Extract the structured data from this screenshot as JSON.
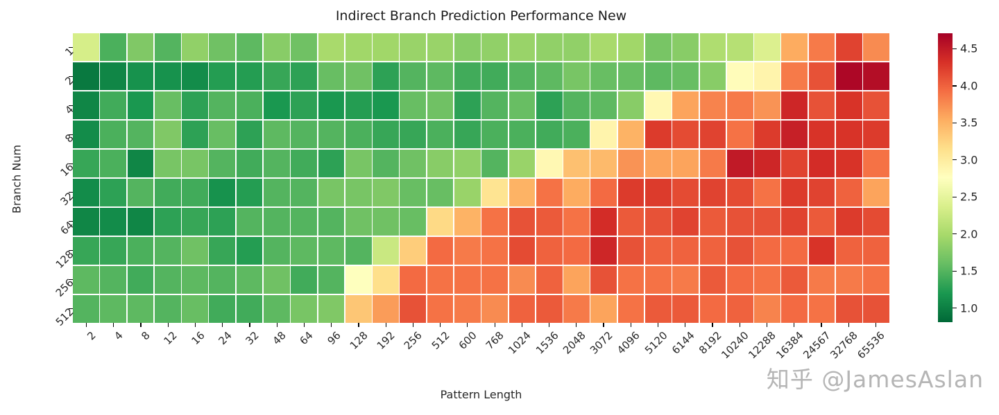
{
  "title": "Indirect Branch Prediction Performance New",
  "watermark": "知乎 @JamesAslan",
  "chart_data": {
    "type": "heatmap",
    "title": "Indirect Branch Prediction Performance New",
    "xlabel": "Pattern Length",
    "ylabel": "Branch Num",
    "x_categories": [
      "2",
      "4",
      "8",
      "12",
      "16",
      "24",
      "32",
      "48",
      "64",
      "96",
      "128",
      "192",
      "256",
      "512",
      "600",
      "768",
      "1024",
      "1536",
      "2048",
      "3072",
      "4096",
      "5120",
      "6144",
      "8192",
      "10240",
      "12288",
      "16384",
      "24567",
      "32768",
      "65536"
    ],
    "y_categories": [
      "1",
      "2",
      "4",
      "8",
      "16",
      "32",
      "64",
      "128",
      "256",
      "512"
    ],
    "colormap": "RdYlGn_r",
    "colormap_colors": [
      "#a50026",
      "#d73027",
      "#f46d43",
      "#fdae61",
      "#fee08b",
      "#ffffbf",
      "#d9ef8b",
      "#a6d96a",
      "#66bd63",
      "#1a9850",
      "#006837"
    ],
    "vmin": 0.81,
    "vmax": 4.71,
    "colorbar_ticks": [
      "1.0",
      "1.5",
      "2.0",
      "2.5",
      "3.0",
      "3.5",
      "4.0",
      "4.5"
    ],
    "grid_color": "#ffffff",
    "legend_position": "right",
    "values": [
      [
        2.35,
        1.45,
        1.75,
        1.5,
        1.85,
        1.65,
        1.55,
        1.8,
        1.65,
        2.0,
        1.95,
        1.95,
        1.9,
        1.9,
        1.8,
        1.85,
        1.9,
        1.85,
        1.85,
        2.0,
        1.95,
        1.7,
        1.8,
        2.05,
        2.1,
        2.4,
        3.55,
        3.85,
        4.2,
        3.75
      ],
      [
        0.95,
        1.05,
        1.15,
        1.15,
        1.1,
        1.25,
        1.25,
        1.35,
        1.3,
        1.6,
        1.65,
        1.3,
        1.5,
        1.55,
        1.4,
        1.4,
        1.5,
        1.55,
        1.7,
        1.6,
        1.6,
        1.55,
        1.6,
        1.8,
        2.8,
        2.9,
        3.85,
        4.1,
        4.65,
        4.6
      ],
      [
        1.05,
        1.4,
        1.2,
        1.6,
        1.3,
        1.5,
        1.45,
        1.2,
        1.3,
        1.2,
        1.25,
        1.2,
        1.6,
        1.65,
        1.3,
        1.5,
        1.6,
        1.3,
        1.5,
        1.55,
        1.8,
        2.85,
        3.6,
        3.8,
        3.85,
        3.7,
        4.4,
        4.1,
        4.3,
        4.1
      ],
      [
        1.1,
        1.45,
        1.5,
        1.75,
        1.3,
        1.6,
        1.3,
        1.55,
        1.5,
        1.5,
        1.45,
        1.35,
        1.35,
        1.45,
        1.35,
        1.45,
        1.45,
        1.4,
        1.45,
        2.9,
        3.5,
        4.25,
        4.15,
        4.2,
        3.9,
        4.25,
        4.45,
        4.3,
        4.3,
        4.25
      ],
      [
        1.35,
        1.45,
        1.05,
        1.7,
        1.7,
        1.5,
        1.4,
        1.5,
        1.4,
        1.3,
        1.7,
        1.5,
        1.65,
        1.8,
        1.85,
        1.5,
        1.9,
        2.85,
        3.4,
        3.45,
        3.7,
        3.6,
        3.6,
        3.85,
        4.5,
        4.4,
        4.2,
        4.35,
        4.3,
        3.9
      ],
      [
        1.1,
        1.3,
        1.5,
        1.4,
        1.4,
        1.15,
        1.25,
        1.5,
        1.5,
        1.7,
        1.7,
        1.75,
        1.6,
        1.6,
        1.9,
        3.1,
        3.5,
        3.9,
        3.55,
        3.95,
        4.25,
        4.25,
        4.15,
        4.2,
        4.15,
        3.9,
        4.25,
        4.2,
        4.0,
        3.6
      ],
      [
        1.05,
        1.1,
        1.05,
        1.3,
        1.35,
        1.3,
        1.5,
        1.5,
        1.5,
        1.5,
        1.65,
        1.65,
        1.6,
        3.2,
        3.5,
        3.9,
        4.1,
        4.05,
        3.9,
        4.35,
        4.05,
        4.1,
        4.2,
        4.05,
        4.1,
        4.1,
        4.2,
        4.05,
        4.25,
        4.15
      ],
      [
        1.35,
        1.35,
        1.45,
        1.5,
        1.65,
        1.35,
        1.25,
        1.5,
        1.55,
        1.55,
        1.5,
        2.25,
        3.3,
        3.95,
        3.85,
        3.9,
        4.15,
        4.0,
        3.95,
        4.4,
        4.1,
        4.0,
        4.0,
        4.0,
        4.1,
        3.95,
        3.95,
        4.3,
        4.0,
        4.0
      ],
      [
        1.55,
        1.5,
        1.4,
        1.5,
        1.55,
        1.5,
        1.55,
        1.65,
        1.4,
        1.5,
        2.75,
        3.15,
        3.95,
        3.9,
        3.9,
        3.9,
        3.75,
        4.0,
        3.6,
        4.1,
        3.9,
        3.9,
        3.85,
        4.05,
        3.95,
        3.9,
        4.05,
        3.85,
        3.85,
        3.9
      ],
      [
        1.5,
        1.55,
        1.55,
        1.5,
        1.6,
        1.4,
        1.4,
        1.55,
        1.7,
        1.75,
        3.35,
        3.65,
        4.1,
        3.9,
        3.85,
        3.75,
        4.0,
        4.05,
        3.85,
        3.6,
        3.9,
        4.05,
        4.05,
        3.95,
        4.0,
        3.8,
        3.95,
        3.9,
        4.1,
        4.1
      ]
    ]
  }
}
